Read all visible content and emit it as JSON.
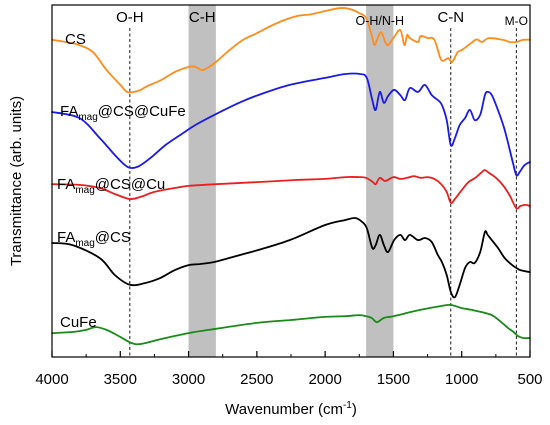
{
  "chart_data": {
    "type": "line",
    "title": "",
    "xlabel": {
      "text": "Wavenumber (cm",
      "sup": "-1",
      "tail": ")"
    },
    "ylabel": "Transmittance (arb. units)",
    "xlim": [
      4000,
      500
    ],
    "ylim": [
      0,
      100
    ],
    "x_reversed": true,
    "x_ticks": [
      4000,
      3500,
      3000,
      2500,
      2000,
      1500,
      1000,
      500
    ],
    "y_ticks": [],
    "grid": false,
    "legend": "inline",
    "bands": [
      {
        "label": "C-H",
        "from": 3000,
        "to": 2800,
        "color": "#c0c0c0"
      },
      {
        "label": "O-H/N-H",
        "from": 1700,
        "to": 1500,
        "color": "#c0c0c0"
      }
    ],
    "marker_lines": [
      {
        "label": "O-H",
        "x": 3430
      },
      {
        "label": "C-N",
        "x": 1080
      },
      {
        "label": "M-O",
        "x": 600
      }
    ],
    "series": [
      {
        "label": {
          "base": "CS"
        },
        "color": "#ff8c1a",
        "points": [
          [
            4000,
            90.1
          ],
          [
            3900,
            89.5
          ],
          [
            3800,
            88.6
          ],
          [
            3700,
            86.6
          ],
          [
            3600,
            81.5
          ],
          [
            3500,
            77.3
          ],
          [
            3450,
            75.3
          ],
          [
            3400,
            75.3
          ],
          [
            3350,
            75.9
          ],
          [
            3300,
            77.0
          ],
          [
            3200,
            78.7
          ],
          [
            3100,
            81.0
          ],
          [
            3000,
            82.4
          ],
          [
            2950,
            82.4
          ],
          [
            2900,
            81.5
          ],
          [
            2850,
            82.4
          ],
          [
            2800,
            83.8
          ],
          [
            2700,
            87.2
          ],
          [
            2600,
            90.1
          ],
          [
            2500,
            92.0
          ],
          [
            2400,
            94.0
          ],
          [
            2300,
            95.7
          ],
          [
            2200,
            96.9
          ],
          [
            2100,
            97.4
          ],
          [
            2000,
            98.3
          ],
          [
            1900,
            99.1
          ],
          [
            1850,
            99.1
          ],
          [
            1800,
            98.6
          ],
          [
            1750,
            97.7
          ],
          [
            1700,
            96.3
          ],
          [
            1660,
            91.5
          ],
          [
            1640,
            88.6
          ],
          [
            1620,
            90.1
          ],
          [
            1590,
            92.3
          ],
          [
            1560,
            89.5
          ],
          [
            1540,
            88.6
          ],
          [
            1500,
            90.6
          ],
          [
            1450,
            92.9
          ],
          [
            1420,
            88.6
          ],
          [
            1400,
            91.5
          ],
          [
            1380,
            90.6
          ],
          [
            1320,
            89.5
          ],
          [
            1300,
            91.2
          ],
          [
            1250,
            90.6
          ],
          [
            1200,
            90.1
          ],
          [
            1150,
            84.4
          ],
          [
            1100,
            84.9
          ],
          [
            1070,
            83.8
          ],
          [
            1030,
            86.6
          ],
          [
            1000,
            87.2
          ],
          [
            950,
            88.6
          ],
          [
            900,
            90.1
          ],
          [
            880,
            90.1
          ],
          [
            850,
            89.5
          ],
          [
            800,
            90.6
          ],
          [
            700,
            90.1
          ],
          [
            650,
            89.5
          ],
          [
            600,
            89.5
          ],
          [
            550,
            90.1
          ],
          [
            500,
            90.1
          ]
        ]
      },
      {
        "label": {
          "base": "FA",
          "sub": "mag",
          "rest": "@CS@CuFe"
        },
        "color": "#1a1ae6",
        "points": [
          [
            4000,
            69.6
          ],
          [
            3800,
            67.9
          ],
          [
            3650,
            62.2
          ],
          [
            3540,
            57.4
          ],
          [
            3465,
            54.5
          ],
          [
            3420,
            53.7
          ],
          [
            3360,
            54.3
          ],
          [
            3280,
            56.5
          ],
          [
            3170,
            60.2
          ],
          [
            3060,
            63.1
          ],
          [
            2950,
            65.9
          ],
          [
            2810,
            68.8
          ],
          [
            2620,
            72.4
          ],
          [
            2490,
            74.4
          ],
          [
            2260,
            77.3
          ],
          [
            2000,
            79.3
          ],
          [
            1850,
            80.4
          ],
          [
            1745,
            80.4
          ],
          [
            1695,
            79.3
          ],
          [
            1655,
            73.0
          ],
          [
            1630,
            70.2
          ],
          [
            1600,
            75.3
          ],
          [
            1570,
            72.2
          ],
          [
            1540,
            74.1
          ],
          [
            1495,
            75.9
          ],
          [
            1450,
            74.4
          ],
          [
            1415,
            73.0
          ],
          [
            1380,
            76.4
          ],
          [
            1320,
            75.3
          ],
          [
            1270,
            77.3
          ],
          [
            1220,
            74.4
          ],
          [
            1175,
            73.0
          ],
          [
            1145,
            71.6
          ],
          [
            1110,
            67.3
          ],
          [
            1080,
            60.2
          ],
          [
            1050,
            62.2
          ],
          [
            1015,
            65.9
          ],
          [
            975,
            67.9
          ],
          [
            940,
            70.2
          ],
          [
            905,
            67.3
          ],
          [
            865,
            68.8
          ],
          [
            830,
            74.4
          ],
          [
            810,
            75.3
          ],
          [
            780,
            74.4
          ],
          [
            735,
            70.2
          ],
          [
            685,
            64.5
          ],
          [
            630,
            56.0
          ],
          [
            600,
            51.7
          ],
          [
            575,
            52.6
          ],
          [
            540,
            54.5
          ],
          [
            500,
            55.4
          ]
        ]
      },
      {
        "label": {
          "base": "FA",
          "sub": "mag",
          "rest": "@CS@Cu"
        },
        "color": "#e82020",
        "points": [
          [
            4000,
            49.1
          ],
          [
            3800,
            48.9
          ],
          [
            3650,
            48.0
          ],
          [
            3540,
            46.3
          ],
          [
            3430,
            44.9
          ],
          [
            3350,
            45.5
          ],
          [
            3250,
            46.9
          ],
          [
            3100,
            48.0
          ],
          [
            3000,
            48.6
          ],
          [
            2800,
            49.1
          ],
          [
            2500,
            49.7
          ],
          [
            2200,
            50.3
          ],
          [
            2000,
            50.6
          ],
          [
            1850,
            51.1
          ],
          [
            1750,
            51.1
          ],
          [
            1700,
            50.9
          ],
          [
            1650,
            49.7
          ],
          [
            1630,
            49.1
          ],
          [
            1600,
            50.9
          ],
          [
            1560,
            50.0
          ],
          [
            1500,
            51.1
          ],
          [
            1450,
            50.6
          ],
          [
            1400,
            50.9
          ],
          [
            1350,
            51.4
          ],
          [
            1300,
            50.9
          ],
          [
            1250,
            51.1
          ],
          [
            1200,
            50.6
          ],
          [
            1150,
            49.1
          ],
          [
            1110,
            46.9
          ],
          [
            1080,
            43.8
          ],
          [
            1050,
            44.9
          ],
          [
            1000,
            47.4
          ],
          [
            950,
            49.7
          ],
          [
            900,
            50.9
          ],
          [
            850,
            52.6
          ],
          [
            830,
            53.1
          ],
          [
            800,
            52.3
          ],
          [
            750,
            50.9
          ],
          [
            700,
            48.9
          ],
          [
            650,
            46.0
          ],
          [
            600,
            42.3
          ],
          [
            570,
            42.9
          ],
          [
            530,
            43.2
          ],
          [
            500,
            42.9
          ]
        ]
      },
      {
        "label": {
          "base": "FA",
          "sub": "mag",
          "rest": "@CS"
        },
        "color": "#000000",
        "points": [
          [
            4000,
            32.4
          ],
          [
            3850,
            31.8
          ],
          [
            3650,
            28.1
          ],
          [
            3540,
            23.3
          ],
          [
            3430,
            20.5
          ],
          [
            3320,
            21.0
          ],
          [
            3210,
            22.4
          ],
          [
            3100,
            24.7
          ],
          [
            3000,
            26.1
          ],
          [
            2920,
            26.4
          ],
          [
            2810,
            27.0
          ],
          [
            2620,
            29.0
          ],
          [
            2490,
            30.4
          ],
          [
            2260,
            33.2
          ],
          [
            2000,
            37.5
          ],
          [
            1855,
            38.9
          ],
          [
            1780,
            39.5
          ],
          [
            1730,
            38.4
          ],
          [
            1695,
            36.6
          ],
          [
            1655,
            31.0
          ],
          [
            1630,
            31.8
          ],
          [
            1600,
            34.7
          ],
          [
            1570,
            31.8
          ],
          [
            1540,
            29.8
          ],
          [
            1495,
            33.2
          ],
          [
            1450,
            34.7
          ],
          [
            1415,
            33.2
          ],
          [
            1380,
            34.7
          ],
          [
            1320,
            33.2
          ],
          [
            1270,
            33.8
          ],
          [
            1220,
            32.7
          ],
          [
            1175,
            29.0
          ],
          [
            1145,
            27.0
          ],
          [
            1110,
            23.3
          ],
          [
            1080,
            18.5
          ],
          [
            1050,
            17.0
          ],
          [
            1015,
            20.5
          ],
          [
            975,
            25.3
          ],
          [
            940,
            27.0
          ],
          [
            905,
            26.7
          ],
          [
            865,
            29.8
          ],
          [
            830,
            35.5
          ],
          [
            810,
            34.7
          ],
          [
            780,
            33.2
          ],
          [
            735,
            31.0
          ],
          [
            685,
            28.1
          ],
          [
            630,
            26.1
          ],
          [
            600,
            25.3
          ],
          [
            570,
            24.7
          ],
          [
            500,
            24.1
          ]
        ]
      },
      {
        "label": {
          "base": "CuFe"
        },
        "color": "#1a8a1a",
        "points": [
          [
            4000,
            6.8
          ],
          [
            3850,
            7.1
          ],
          [
            3750,
            7.7
          ],
          [
            3680,
            8.5
          ],
          [
            3600,
            7.7
          ],
          [
            3500,
            5.7
          ],
          [
            3420,
            4.0
          ],
          [
            3350,
            3.7
          ],
          [
            3200,
            5.1
          ],
          [
            3000,
            6.8
          ],
          [
            2800,
            8.0
          ],
          [
            2500,
            9.7
          ],
          [
            2250,
            10.5
          ],
          [
            2000,
            11.4
          ],
          [
            1850,
            11.6
          ],
          [
            1750,
            11.9
          ],
          [
            1700,
            11.6
          ],
          [
            1660,
            11.1
          ],
          [
            1620,
            9.9
          ],
          [
            1570,
            11.1
          ],
          [
            1500,
            11.6
          ],
          [
            1300,
            13.4
          ],
          [
            1150,
            14.5
          ],
          [
            1080,
            14.8
          ],
          [
            1000,
            13.9
          ],
          [
            930,
            13.4
          ],
          [
            860,
            12.8
          ],
          [
            780,
            11.9
          ],
          [
            710,
            9.9
          ],
          [
            660,
            8.2
          ],
          [
            620,
            7.1
          ],
          [
            590,
            6.0
          ],
          [
            550,
            5.4
          ],
          [
            500,
            5.4
          ]
        ]
      }
    ]
  }
}
